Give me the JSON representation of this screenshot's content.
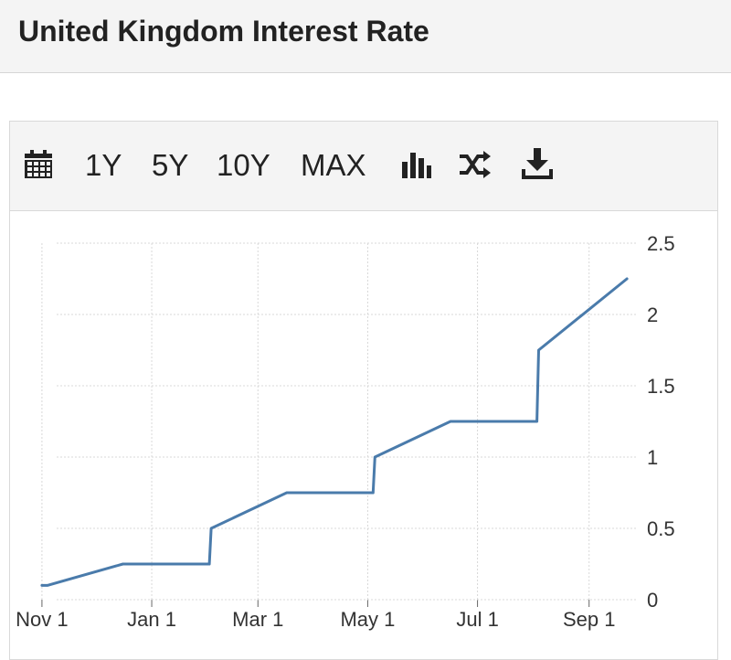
{
  "header": {
    "title": "United Kingdom Interest Rate"
  },
  "toolbar": {
    "calendar_icon": "calendar-icon",
    "ranges": [
      "1Y",
      "5Y",
      "10Y",
      "MAX"
    ],
    "chart_type_icon": "bar-chart-icon",
    "compare_icon": "shuffle-icon",
    "download_icon": "download-icon"
  },
  "colors": {
    "line": "#4a7bab",
    "grid": "#d8d8d8"
  },
  "chart_data": {
    "type": "line",
    "x_tick_labels": [
      "Nov 1",
      "Jan 1",
      "Mar 1",
      "May 1",
      "Jul 1",
      "Sep 1"
    ],
    "y_tick_labels": [
      "0",
      "0.5",
      "1",
      "1.5",
      "2",
      "2.5"
    ],
    "ylim": [
      0,
      2.5
    ],
    "xlim": [
      "2021-10-29",
      "2022-09-24"
    ],
    "grid": true,
    "y_axis_position": "right",
    "series": [
      {
        "x": [
          "2021-11-01",
          "2021-11-04",
          "2021-12-16",
          "2022-02-02",
          "2022-02-03",
          "2022-03-17",
          "2022-05-04",
          "2022-05-05",
          "2022-06-16",
          "2022-08-03",
          "2022-08-04",
          "2022-09-22"
        ],
        "values": [
          0.1,
          0.1,
          0.25,
          0.25,
          0.5,
          0.75,
          0.75,
          1.0,
          1.25,
          1.25,
          1.75,
          2.25
        ]
      }
    ]
  }
}
